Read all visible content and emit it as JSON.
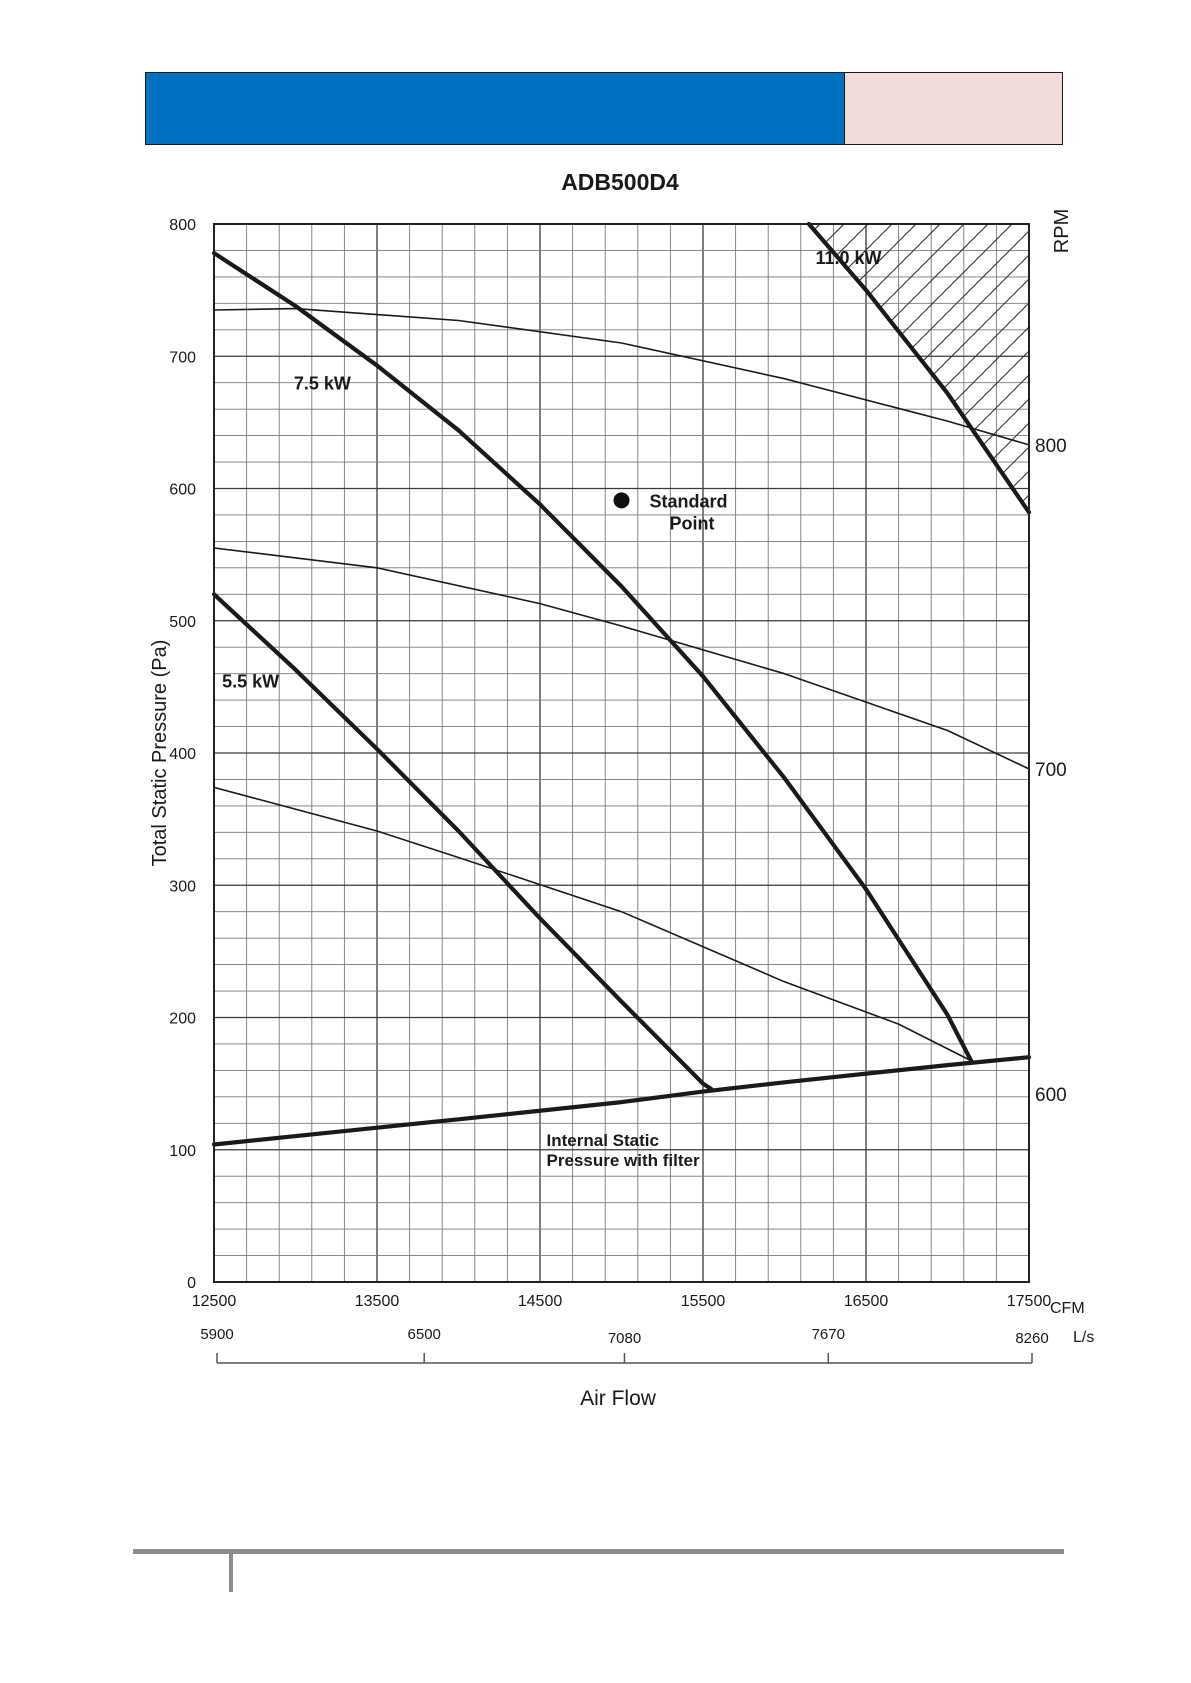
{
  "header": {
    "blue_color": "#0070c0",
    "pink_color": "#f2dcdb"
  },
  "chart_data": {
    "type": "line",
    "title": "ADB500D4",
    "xlabel": "Air Flow",
    "ylabel": "Total Static Pressure (Pa)",
    "right_axis_title": "RPM",
    "xlim": [
      12500,
      17500
    ],
    "ylim": [
      0,
      800
    ],
    "grid": true,
    "x_unit_primary": "CFM",
    "x_unit_secondary": "L/s",
    "x_ticks_cfm": [
      "12500",
      "13500",
      "14500",
      "15500",
      "16500",
      "17500"
    ],
    "x_tick_values_cfm": [
      12500,
      13500,
      14500,
      15500,
      16500,
      17500
    ],
    "x_ticks_ls": [
      "5900",
      "6500",
      "7080",
      "7670",
      "8260"
    ],
    "x_tick_values_ls": [
      5900,
      6500,
      7080,
      7670,
      8260
    ],
    "y_ticks": [
      "0",
      "100",
      "200",
      "300",
      "400",
      "500",
      "600",
      "700",
      "800"
    ],
    "y_tick_values": [
      0,
      100,
      200,
      300,
      400,
      500,
      600,
      700,
      800
    ],
    "rpm_labels": [
      {
        "text": "800",
        "y": 633
      },
      {
        "text": "700",
        "y": 388
      },
      {
        "text": "600",
        "y": 142
      }
    ],
    "series": [
      {
        "name": "800 RPM",
        "style": "thin",
        "x": [
          12500,
          13000,
          14000,
          15000,
          16000,
          17000,
          17500
        ],
        "y": [
          735,
          736,
          727,
          710,
          683,
          651,
          633
        ]
      },
      {
        "name": "700 RPM",
        "style": "thin",
        "x": [
          12500,
          13500,
          14500,
          15000,
          16000,
          17000,
          17500
        ],
        "y": [
          555,
          540,
          513,
          496,
          460,
          417,
          388
        ]
      },
      {
        "name": "600 RPM",
        "style": "thin",
        "x": [
          12500,
          13500,
          14000,
          15000,
          16000,
          16700,
          17150
        ],
        "y": [
          374,
          341,
          321,
          280,
          227,
          195,
          167
        ]
      },
      {
        "name": "Internal Static Pressure with filter",
        "style": "thick",
        "x": [
          12500,
          14000,
          15000,
          15500,
          16000,
          17000,
          17500
        ],
        "y": [
          104,
          123,
          136,
          144,
          151,
          164,
          170
        ]
      },
      {
        "name": "5.5 kW",
        "style": "thick",
        "x": [
          12500,
          13000,
          13500,
          14000,
          14500,
          15000,
          15500,
          15550
        ],
        "y": [
          520,
          463,
          403,
          341,
          275,
          212,
          150,
          146
        ]
      },
      {
        "name": "7.5 kW",
        "style": "thick",
        "x": [
          12500,
          13000,
          13500,
          14000,
          14500,
          15000,
          15500,
          16000,
          16500,
          17000,
          17150
        ],
        "y": [
          778,
          738,
          693,
          644,
          588,
          526,
          458,
          381,
          297,
          202,
          166
        ]
      },
      {
        "name": "11.0 kW",
        "style": "thick",
        "x": [
          16150,
          16500,
          17000,
          17500
        ],
        "y": [
          800,
          750,
          672,
          582
        ]
      }
    ],
    "curve_labels": [
      {
        "text": "11.0 kW",
        "x": 16190,
        "y": 775
      },
      {
        "text": "7.5 kW",
        "x": 12990,
        "y": 680
      },
      {
        "text": "5.5 kW",
        "x": 12550,
        "y": 455
      }
    ],
    "standard_point": {
      "x": 15000,
      "y": 591,
      "label_line1": "Standard",
      "label_line2": "Point"
    },
    "isp_label": {
      "line1": "Internal Static",
      "line2": "Pressure with filter",
      "x": 14540,
      "y": 103
    },
    "hatched_region": {
      "description": "area above 11.0 kW limit"
    }
  }
}
